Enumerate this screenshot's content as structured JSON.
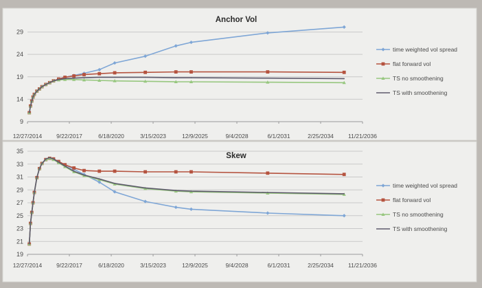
{
  "colors": {
    "page_bg": "#bdb9b4",
    "panel_bg": "#efefed",
    "grid": "#c9c9c9",
    "axis_text": "#4a4a4a",
    "title": "#2a2a2a"
  },
  "chart_data": [
    {
      "type": "line",
      "title": "Anchor Vol",
      "x_type": "date",
      "x_ticks": [
        "12/27/2014",
        "9/22/2017",
        "6/18/2020",
        "3/15/2023",
        "12/9/2025",
        "9/4/2028",
        "6/1/2031",
        "2/25/2034",
        "11/21/2036"
      ],
      "xlim": [
        "12/27/2014",
        "11/21/2036"
      ],
      "y_ticks": [
        9,
        14,
        19,
        24,
        29
      ],
      "ylim": [
        9,
        32
      ],
      "grid": true,
      "legend_position": "right",
      "x": [
        "2015-02-09",
        "2015-03-09",
        "2015-04-09",
        "2015-05-09",
        "2015-06-09",
        "2015-08-09",
        "2015-10-09",
        "2015-12-09",
        "2016-03-09",
        "2016-06-09",
        "2016-09-09",
        "2017-01-09",
        "2017-06-09",
        "2018-01-09",
        "2018-09-09",
        "2019-09-09",
        "2020-09-09",
        "2022-09-09",
        "2024-09-09",
        "2025-09-09",
        "2030-09-09",
        "2035-09-09"
      ],
      "series": [
        {
          "name": "time weighted vol spread",
          "color": "#7ea6d6",
          "marker": "diamond",
          "values": [
            11.0,
            12.5,
            13.6,
            14.5,
            15.1,
            15.8,
            16.3,
            16.8,
            17.3,
            17.7,
            18.1,
            18.5,
            18.9,
            19.3,
            19.8,
            20.6,
            22.1,
            23.6,
            25.9,
            26.7,
            28.8,
            30.1
          ]
        },
        {
          "name": "flat forward vol",
          "color": "#b5533f",
          "marker": "square",
          "values": [
            11.0,
            12.5,
            13.6,
            14.5,
            15.1,
            15.8,
            16.3,
            16.8,
            17.3,
            17.7,
            18.1,
            18.5,
            18.9,
            19.2,
            19.5,
            19.7,
            19.9,
            20.0,
            20.1,
            20.1,
            20.1,
            20.0
          ]
        },
        {
          "name": "TS no smoothening",
          "color": "#97c77f",
          "marker": "triangle",
          "values": [
            11.0,
            12.5,
            13.6,
            14.5,
            15.1,
            15.8,
            16.3,
            16.8,
            17.3,
            17.7,
            18.1,
            18.3,
            18.4,
            18.4,
            18.3,
            18.2,
            18.1,
            18.0,
            17.9,
            17.9,
            17.8,
            17.7
          ]
        },
        {
          "name": "TS with smoothening",
          "color": "#5e5a6c",
          "marker": "none",
          "values": [
            11.0,
            12.5,
            13.6,
            14.5,
            15.1,
            15.8,
            16.3,
            16.8,
            17.3,
            17.7,
            18.1,
            18.4,
            18.6,
            18.7,
            18.8,
            18.9,
            18.9,
            18.9,
            18.8,
            18.8,
            18.7,
            18.6
          ]
        }
      ]
    },
    {
      "type": "line",
      "title": "Skew",
      "x_type": "date",
      "x_ticks": [
        "12/27/2014",
        "9/22/2017",
        "6/18/2020",
        "3/15/2023",
        "12/9/2025",
        "9/4/2028",
        "6/1/2031",
        "2/25/2034",
        "11/21/2036"
      ],
      "xlim": [
        "12/27/2014",
        "11/21/2036"
      ],
      "y_ticks": [
        19,
        21,
        23,
        25,
        27,
        29,
        31,
        33,
        35
      ],
      "ylim": [
        19,
        35
      ],
      "grid": true,
      "legend_position": "right",
      "x": [
        "2015-02-09",
        "2015-03-09",
        "2015-04-09",
        "2015-05-09",
        "2015-06-09",
        "2015-08-09",
        "2015-10-09",
        "2015-12-09",
        "2016-03-09",
        "2016-06-09",
        "2016-09-09",
        "2017-01-09",
        "2017-06-09",
        "2018-01-09",
        "2018-09-09",
        "2019-09-09",
        "2020-09-09",
        "2022-09-09",
        "2024-09-09",
        "2025-09-09",
        "2030-09-09",
        "2035-09-09"
      ],
      "series": [
        {
          "name": "time weighted vol spread",
          "color": "#7ea6d6",
          "marker": "diamond",
          "values": [
            20.6,
            23.8,
            25.5,
            27.0,
            28.6,
            30.9,
            32.3,
            33.1,
            33.7,
            33.9,
            33.8,
            33.4,
            32.9,
            32.2,
            31.4,
            30.2,
            28.7,
            27.2,
            26.3,
            26.0,
            25.4,
            25.0
          ]
        },
        {
          "name": "flat forward vol",
          "color": "#b5533f",
          "marker": "square",
          "values": [
            20.6,
            23.8,
            25.5,
            27.0,
            28.6,
            30.9,
            32.3,
            33.1,
            33.7,
            33.9,
            33.8,
            33.4,
            32.9,
            32.4,
            32.0,
            31.9,
            31.9,
            31.8,
            31.8,
            31.8,
            31.6,
            31.4
          ]
        },
        {
          "name": "TS no smoothening",
          "color": "#97c77f",
          "marker": "triangle",
          "values": [
            20.6,
            23.8,
            25.5,
            27.0,
            28.6,
            30.9,
            32.3,
            33.1,
            33.7,
            33.9,
            33.7,
            33.2,
            32.6,
            31.8,
            31.2,
            30.6,
            29.9,
            29.2,
            28.8,
            28.7,
            28.5,
            28.3
          ]
        },
        {
          "name": "TS with smoothening",
          "color": "#5e5a6c",
          "marker": "none",
          "values": [
            20.6,
            23.8,
            25.5,
            27.0,
            28.6,
            30.9,
            32.3,
            33.1,
            33.8,
            34.0,
            33.8,
            33.3,
            32.7,
            31.9,
            31.3,
            30.7,
            30.0,
            29.3,
            28.9,
            28.8,
            28.6,
            28.4
          ]
        }
      ]
    }
  ]
}
